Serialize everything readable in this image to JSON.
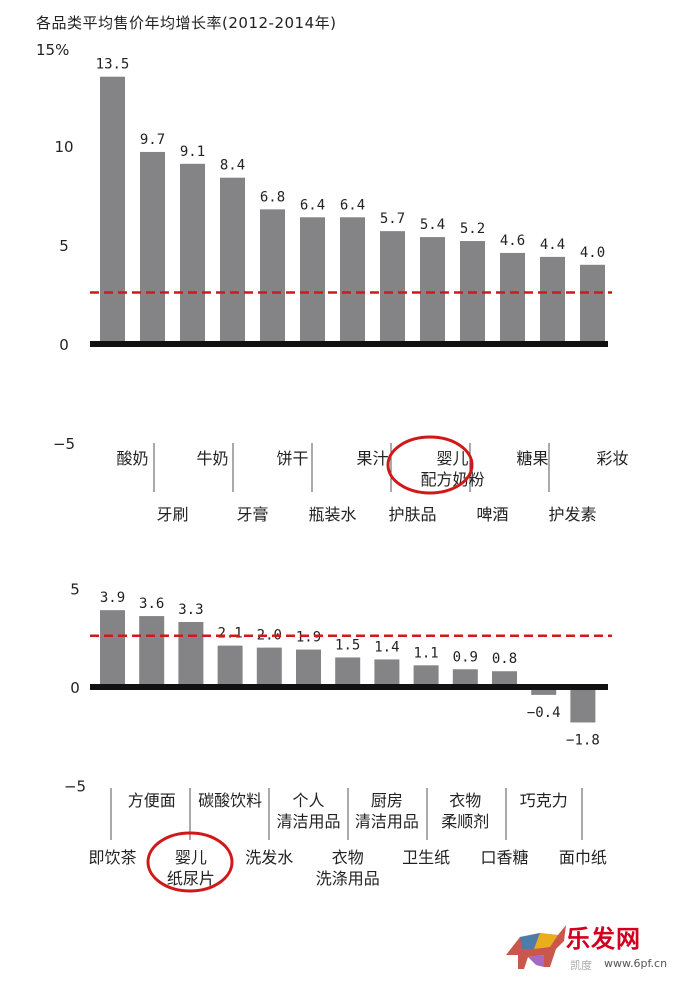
{
  "title": "各品类平均售价年均增长率(2012-2014年)",
  "watermark": {
    "brand": "乐发网",
    "url": "www.6pf.cn",
    "wechat_name": "凯度"
  },
  "colors": {
    "bar": "#848487",
    "baseline": "#111111",
    "reference_line": "#cc1b1b",
    "highlight": "#d01818"
  },
  "chart_data": [
    {
      "type": "bar",
      "ylim": [
        -5,
        15
      ],
      "yticks": [
        {
          "value": 15,
          "label": "15%"
        },
        {
          "value": 10,
          "label": "10"
        },
        {
          "value": 5,
          "label": "5"
        },
        {
          "value": 0,
          "label": "0"
        },
        {
          "value": -5,
          "label": "−5"
        }
      ],
      "categories": [
        "酸奶",
        "牙刷",
        "牛奶",
        "牙膏",
        "饼干",
        "瓶装水",
        "果汁",
        "护肤品",
        "婴儿\n配方奶粉",
        "啤酒",
        "糖果",
        "护发素",
        "彩妆"
      ],
      "values": [
        13.5,
        9.7,
        9.1,
        8.4,
        6.8,
        6.4,
        6.4,
        5.7,
        5.4,
        5.2,
        4.6,
        4.4,
        4.0
      ],
      "value_labels": [
        "13.5",
        "9.7",
        "9.1",
        "8.4",
        "6.8",
        "6.4",
        "6.4",
        "5.7",
        "5.4",
        "5.2",
        "4.6",
        "4.4",
        "4.0"
      ],
      "reference_line": 2.6,
      "highlighted_category": "婴儿\n配方奶粉"
    },
    {
      "type": "bar",
      "ylim": [
        -5,
        5
      ],
      "yticks": [
        {
          "value": 5,
          "label": "5"
        },
        {
          "value": 0,
          "label": "0"
        },
        {
          "value": -5,
          "label": "−5"
        }
      ],
      "categories": [
        "即饮茶",
        "方便面",
        "婴儿\n纸尿片",
        "碳酸饮料",
        "洗发水",
        "个人\n清洁用品",
        "衣物\n洗涤用品",
        "厨房\n清洁用品",
        "卫生纸",
        "衣物\n柔顺剂",
        "口香糖",
        "巧克力",
        "面巾纸"
      ],
      "values": [
        3.9,
        3.6,
        3.3,
        2.1,
        2.0,
        1.9,
        1.5,
        1.4,
        1.1,
        0.9,
        0.8,
        -0.4,
        -1.8
      ],
      "value_labels": [
        "3.9",
        "3.6",
        "3.3",
        "2.1",
        "2.0",
        "1.9",
        "1.5",
        "1.4",
        "1.1",
        "0.9",
        "0.8",
        "−0.4",
        "−1.8"
      ],
      "reference_line": 2.6,
      "highlighted_category": "婴儿\n纸尿片"
    }
  ]
}
